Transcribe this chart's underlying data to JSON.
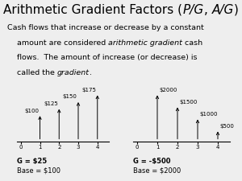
{
  "title_parts": [
    {
      "text": "Arithmetic Gradient Factors (",
      "style": "normal"
    },
    {
      "text": "P/G",
      "style": "italic"
    },
    {
      "text": ", ",
      "style": "normal"
    },
    {
      "text": "A/G",
      "style": "italic"
    },
    {
      "text": ")",
      "style": "normal"
    }
  ],
  "body_lines": [
    [
      {
        "text": "Cash flows that increase or decrease by a constant",
        "style": "normal"
      }
    ],
    [
      {
        "text": "    amount are considered ",
        "style": "normal"
      },
      {
        "text": "arithmetic gradient",
        "style": "italic"
      },
      {
        "text": " cash",
        "style": "normal"
      }
    ],
    [
      {
        "text": "    flows.  The amount of increase (or decrease) is",
        "style": "normal"
      }
    ],
    [
      {
        "text": "    called the ",
        "style": "normal"
      },
      {
        "text": "gradient",
        "style": "italic"
      },
      {
        "text": ".",
        "style": "normal"
      }
    ]
  ],
  "chart1": {
    "x": [
      1,
      2,
      3,
      4
    ],
    "y": [
      100,
      125,
      150,
      175
    ],
    "labels": [
      "$100",
      "$125",
      "$150",
      "$175"
    ],
    "label_offsets": [
      3,
      3,
      3,
      3
    ],
    "g_label": "G = $25",
    "base_label": "Base = $100",
    "ylim": [
      0,
      210
    ],
    "label_ha": [
      "right",
      "right",
      "center",
      "center"
    ]
  },
  "chart2": {
    "x": [
      1,
      2,
      3,
      4
    ],
    "y": [
      2000,
      1500,
      1000,
      500
    ],
    "labels": [
      "$2000",
      "$1500",
      "$1000",
      "$500"
    ],
    "label_offsets": [
      50,
      50,
      50,
      50
    ],
    "g_label": "G = -$500",
    "base_label": "Base = $2000",
    "ylim": [
      0,
      2400
    ],
    "label_ha": [
      "center",
      "right",
      "right",
      "right"
    ]
  },
  "bg_color": "#eeeeee",
  "title_fontsize": 11,
  "body_fontsize": 6.8,
  "chart_label_fontsize": 5,
  "axis_fontsize": 5,
  "g_fontsize": 6,
  "base_fontsize": 6
}
